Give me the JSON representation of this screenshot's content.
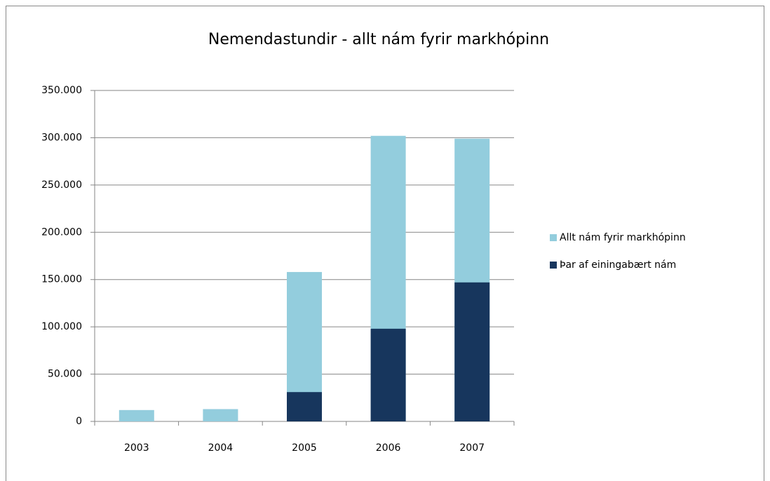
{
  "chart_data": {
    "type": "bar",
    "overlap": true,
    "title": "Nemendastundir - allt nám fyrir markhópinn",
    "categories": [
      "2003",
      "2004",
      "2005",
      "2006",
      "2007"
    ],
    "series": [
      {
        "name": "Allt nám fyrir markhópinn",
        "color": "#93cddd",
        "values": [
          12000,
          13000,
          158000,
          302000,
          299000
        ]
      },
      {
        "name": "Þar af einingabært nám",
        "color": "#17365d",
        "values": [
          0,
          0,
          31000,
          98000,
          147000
        ]
      }
    ],
    "ylim": [
      0,
      350000
    ],
    "yticks": [
      0,
      {
        "value": 50000,
        "label": "50.000"
      },
      {
        "value": 100000,
        "label": "100.000"
      },
      {
        "value": 150000,
        "label": "150.000"
      },
      {
        "value": 200000,
        "label": "200.000"
      },
      {
        "value": 250000,
        "label": "250.000"
      },
      {
        "value": 300000,
        "label": "300.000"
      },
      {
        "value": 350000,
        "label": "350.000"
      }
    ],
    "grid": true,
    "legend": "right"
  }
}
